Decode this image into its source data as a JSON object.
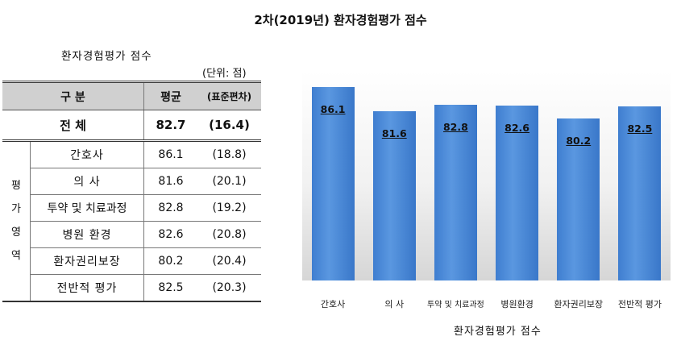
{
  "page": {
    "title": "2차(2019년) 환자경험평가 점수"
  },
  "table": {
    "title": "환자경험평가 점수",
    "unit": "(단위: 점)",
    "header": {
      "group": "구 분",
      "mean": "평균",
      "sd": "(표준편차)"
    },
    "total": {
      "label": "전 체",
      "mean": "82.7",
      "sd": "(16.4)"
    },
    "category_label": "평 가 영 역",
    "rows": [
      {
        "label": "간호사",
        "mean": "86.1",
        "sd": "(18.8)"
      },
      {
        "label": "의 사",
        "mean": "81.6",
        "sd": "(20.1)"
      },
      {
        "label": "투약 및 치료과정",
        "mean": "82.8",
        "sd": "(19.2)"
      },
      {
        "label": "병원 환경",
        "mean": "82.6",
        "sd": "(20.8)"
      },
      {
        "label": "환자권리보장",
        "mean": "80.2",
        "sd": "(20.4)"
      },
      {
        "label": "전반적 평가",
        "mean": "82.5",
        "sd": "(20.3)"
      }
    ]
  },
  "chart_data": {
    "type": "bar",
    "categories": [
      "간호사",
      "의 사",
      "투약 및 치료과정",
      "병원환경",
      "환자권리보장",
      "전반적 평가"
    ],
    "values": [
      86.1,
      81.6,
      82.8,
      82.6,
      80.2,
      82.5
    ],
    "data_labels": [
      "86.1",
      "81.6",
      "82.8",
      "82.6",
      "80.2",
      "82.5"
    ],
    "title": "",
    "xlabel": "환자경험평가 점수",
    "ylabel": "",
    "grid": false,
    "legend": "none",
    "bar_color": "#4a88d8"
  }
}
